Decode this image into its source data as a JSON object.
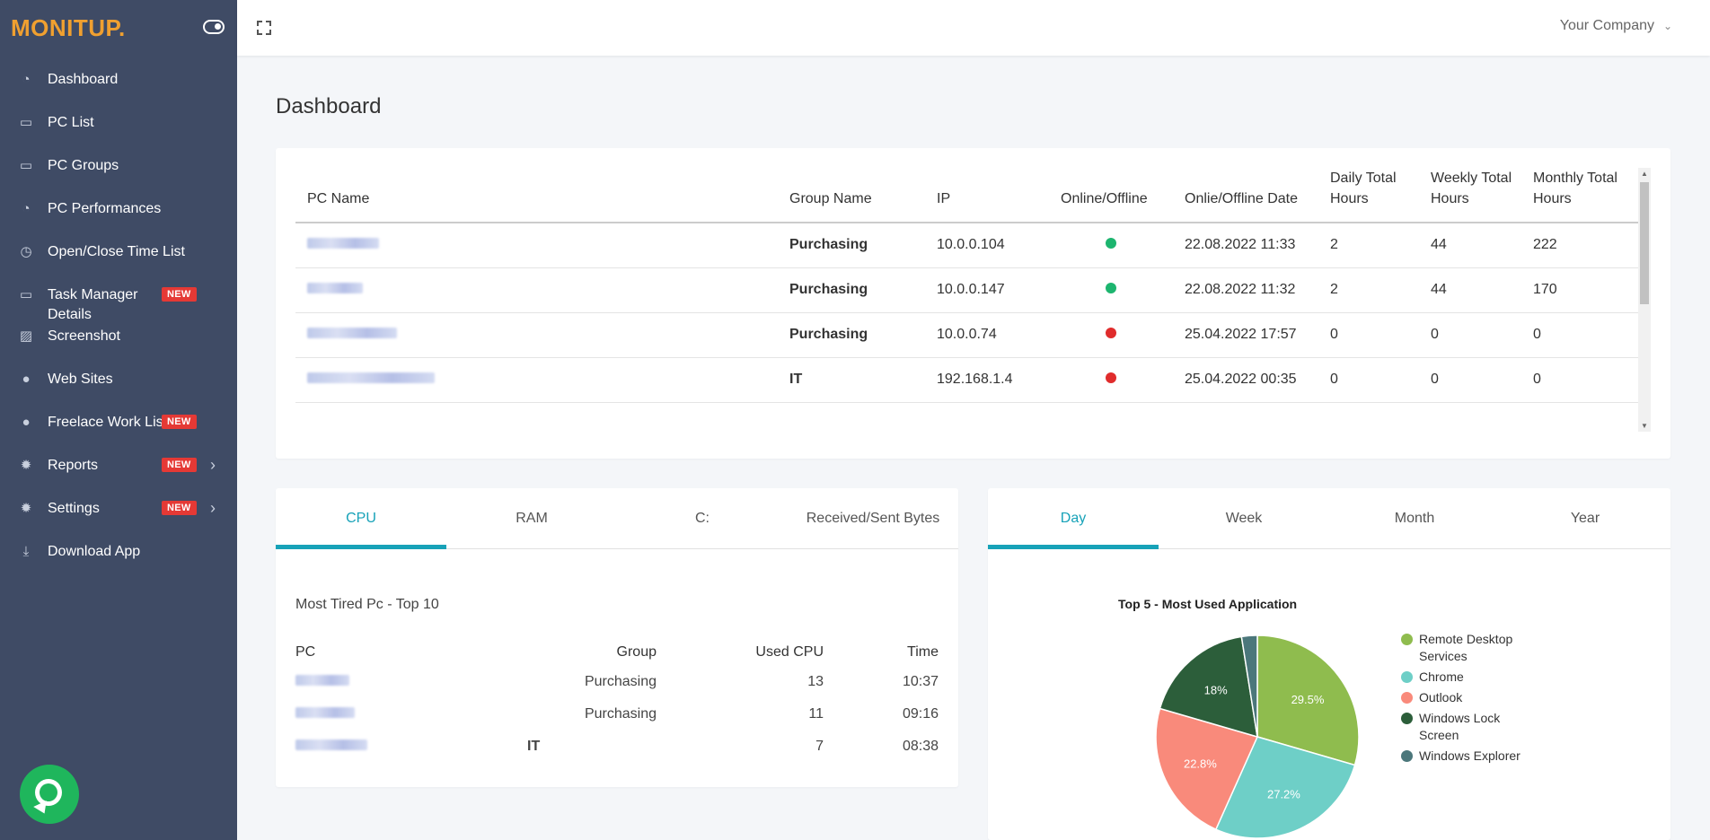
{
  "app": {
    "logo": "MONITUP."
  },
  "sidebar": {
    "items": [
      {
        "label": "Dashboard",
        "icon": "speedometer-icon",
        "top": 76
      },
      {
        "label": "PC List",
        "icon": "monitor-icon",
        "top": 124
      },
      {
        "label": "PC Groups",
        "icon": "monitor-icon",
        "top": 172
      },
      {
        "label": "PC Performances",
        "icon": "speedometer-icon",
        "top": 220
      },
      {
        "label": "Open/Close Time List",
        "icon": "clock-icon",
        "top": 268
      },
      {
        "label": "Task Manager Details",
        "icon": "monitor-icon",
        "top": 316,
        "badge": "NEW"
      },
      {
        "label": "Screenshot",
        "icon": "image-icon",
        "top": 362
      },
      {
        "label": "Web Sites",
        "icon": "globe-icon",
        "top": 410
      },
      {
        "label": "Freelace Work List",
        "icon": "globe-icon",
        "top": 458,
        "badge": "NEW"
      },
      {
        "label": "Reports",
        "icon": "gear-icon",
        "top": 506,
        "badge": "NEW",
        "chevron": true
      },
      {
        "label": "Settings",
        "icon": "gear-icon",
        "top": 554,
        "badge": "NEW",
        "chevron": true
      },
      {
        "label": "Download App",
        "icon": "download-icon",
        "top": 602
      }
    ]
  },
  "header": {
    "company": "Your Company"
  },
  "page": {
    "title": "Dashboard"
  },
  "pc_table": {
    "headers": [
      "PC Name",
      "Group Name",
      "IP",
      "Online/Offline",
      "Onlie/Offline Date",
      "Daily Total Hours",
      "Weekly Total Hours",
      "Monthly Total Hours"
    ],
    "rows": [
      {
        "group": "Purchasing",
        "ip": "10.0.0.104",
        "status": "online",
        "date": "22.08.2022 11:33",
        "daily": "2",
        "weekly": "44",
        "monthly": "222"
      },
      {
        "group": "Purchasing",
        "ip": "10.0.0.147",
        "status": "online",
        "date": "22.08.2022 11:32",
        "daily": "2",
        "weekly": "44",
        "monthly": "170"
      },
      {
        "group": "Purchasing",
        "ip": "10.0.0.74",
        "status": "offline",
        "date": "25.04.2022 17:57",
        "daily": "0",
        "weekly": "0",
        "monthly": "0"
      },
      {
        "group": "IT",
        "ip": "192.168.1.4",
        "status": "offline",
        "date": "25.04.2022 00:35",
        "daily": "0",
        "weekly": "0",
        "monthly": "0"
      }
    ],
    "colors": {
      "online": "#1db56f",
      "offline": "#e02c2c"
    }
  },
  "perf": {
    "tabs": [
      "CPU",
      "RAM",
      "C:",
      "Received/Sent Bytes"
    ],
    "active_tab": 0,
    "title": "Most Tired Pc - Top 10",
    "headers": [
      "PC",
      "Group",
      "Used CPU",
      "Time"
    ],
    "rows": [
      {
        "group": "Purchasing",
        "used": "13",
        "time": "10:37"
      },
      {
        "group": "Purchasing",
        "used": "11",
        "time": "09:16"
      },
      {
        "group": "IT",
        "used": "7",
        "time": "08:38"
      }
    ]
  },
  "apps": {
    "tabs": [
      "Day",
      "Week",
      "Month",
      "Year"
    ],
    "active_tab": 0,
    "chart_data": {
      "type": "pie",
      "title": "Top 5 - Most Used Application",
      "categories": [
        "Remote Desktop Services",
        "Chrome",
        "Outlook",
        "Windows Lock Screen",
        "Windows Explorer"
      ],
      "values": [
        29.5,
        27.2,
        22.8,
        18.0,
        2.5
      ],
      "labels": [
        "29.5%",
        "27.2%",
        "22.8%",
        "18%",
        ""
      ],
      "colors": [
        "#8fbc4e",
        "#6ecfc7",
        "#f98a7b",
        "#2c5e3a",
        "#4b777b"
      ]
    }
  }
}
